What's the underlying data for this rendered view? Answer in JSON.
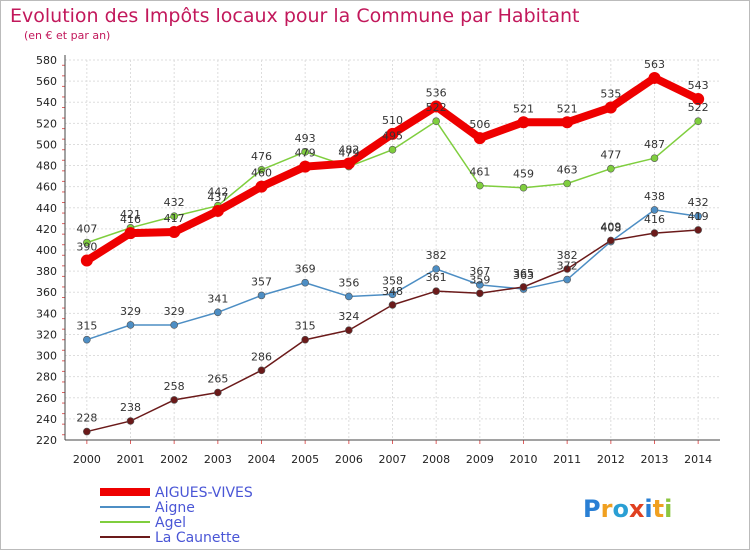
{
  "chart_data": {
    "type": "line",
    "title": "Evolution des Impôts locaux pour la Commune par Habitant",
    "subtitle": "(en € et par an)",
    "xlabel": "",
    "ylabel": "",
    "ylim": [
      220,
      580
    ],
    "y_ticks": [
      220,
      240,
      260,
      280,
      300,
      320,
      340,
      360,
      380,
      400,
      420,
      440,
      460,
      480,
      500,
      520,
      540,
      560,
      580
    ],
    "x": [
      "2000",
      "2001",
      "2002",
      "2003",
      "2004",
      "2005",
      "2006",
      "2007",
      "2008",
      "2009",
      "2010",
      "2011",
      "2012",
      "2013",
      "2014"
    ],
    "grid": true,
    "legend_position": "bottom-left",
    "series": [
      {
        "name": "AIGUES-VIVES",
        "color": "#ee0000",
        "values": [
          390,
          416,
          417,
          437,
          460,
          479,
          482,
          510,
          536,
          506,
          521,
          521,
          535,
          563,
          543
        ]
      },
      {
        "name": "Aigne",
        "color": "#4d8ec4",
        "values": [
          315,
          329,
          329,
          341,
          357,
          369,
          356,
          358,
          382,
          367,
          363,
          372,
          408,
          438,
          432
        ]
      },
      {
        "name": "Agel",
        "color": "#7fce3e",
        "values": [
          407,
          421,
          432,
          442,
          476,
          493,
          479,
          495,
          522,
          461,
          459,
          463,
          477,
          487,
          522
        ]
      },
      {
        "name": "La Caunette",
        "color": "#6b1a1a",
        "values": [
          228,
          238,
          258,
          265,
          286,
          315,
          324,
          348,
          361,
          359,
          365,
          382,
          409,
          416,
          419
        ]
      }
    ]
  },
  "branding": {
    "logo_text": "Proxiti",
    "logo_colors": [
      "#2a7fd4",
      "#f0a020",
      "#2a9fd4",
      "#e04020",
      "#2a7fd4",
      "#f0a020",
      "#8cc63f"
    ]
  }
}
